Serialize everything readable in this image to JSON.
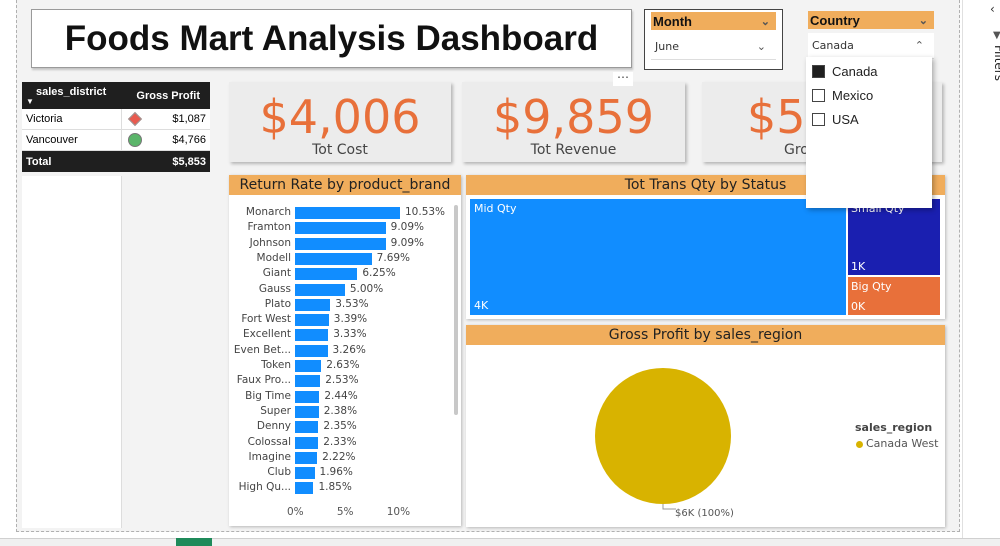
{
  "dashboard": {
    "title": "Foods Mart Analysis Dashboard"
  },
  "month_slicer": {
    "header": "Month",
    "value": "June"
  },
  "country_slicer": {
    "header": "Country",
    "value": "Canada",
    "options": [
      {
        "label": "Canada",
        "checked": true
      },
      {
        "label": "Mexico",
        "checked": false
      },
      {
        "label": "USA",
        "checked": false
      }
    ]
  },
  "more_options": "⋯",
  "table": {
    "col1": "sales_district",
    "col2": "Gross Profit",
    "rows": [
      {
        "district": "Victoria",
        "profit": "$1,087",
        "indicator": "red-diamond",
        "color": "#e85a4f"
      },
      {
        "district": "Vancouver",
        "profit": "$4,766",
        "indicator": "green-circle",
        "color": "#5bb56a"
      }
    ],
    "total_label": "Total",
    "total_value": "$5,853"
  },
  "cards": [
    {
      "value": "$4,006",
      "label": "Tot Cost"
    },
    {
      "value": "$9,859",
      "label": "Tot Revenue"
    },
    {
      "value": "$5",
      "label": "Gro"
    }
  ],
  "colors": {
    "accent": "#f0ad5c",
    "kpi": "#e8703a",
    "bar": "#118dff",
    "treemap_blue": "#118dff",
    "treemap_navy": "#1a1fb0",
    "treemap_orange": "#e8703a",
    "pie": "#d8b300"
  },
  "chart_data": [
    {
      "type": "bar",
      "title": "Return Rate by product_brand",
      "categories": [
        "Monarch",
        "Framton",
        "Johnson",
        "Modell",
        "Giant",
        "Gauss",
        "Plato",
        "Fort West",
        "Excellent",
        "Even Bet...",
        "Token",
        "Faux Pro...",
        "Big Time",
        "Super",
        "Denny",
        "Colossal",
        "Imagine",
        "Club",
        "High Qu..."
      ],
      "values": [
        10.53,
        9.09,
        9.09,
        7.69,
        6.25,
        5.0,
        3.53,
        3.39,
        3.33,
        3.26,
        2.63,
        2.53,
        2.44,
        2.38,
        2.35,
        2.33,
        2.22,
        1.96,
        1.85
      ],
      "value_labels": [
        "10.53%",
        "9.09%",
        "9.09%",
        "7.69%",
        "6.25%",
        "5.00%",
        "3.53%",
        "3.39%",
        "3.33%",
        "3.26%",
        "2.63%",
        "2.53%",
        "2.44%",
        "2.38%",
        "2.35%",
        "2.33%",
        "2.22%",
        "1.96%",
        "1.85%"
      ],
      "x_ticks": [
        "0%",
        "5%",
        "10%"
      ],
      "xlim": [
        0,
        10.53
      ]
    },
    {
      "type": "treemap",
      "title": "Tot Trans Qty by Status",
      "items": [
        {
          "name": "Mid Qty",
          "value_label": "4K"
        },
        {
          "name": "Small Qty",
          "value_label": "1K"
        },
        {
          "name": "Big Qty",
          "value_label": "0K"
        }
      ]
    },
    {
      "type": "pie",
      "title": "Gross Profit by sales_region",
      "slices": [
        {
          "name": "Canada West",
          "value": 5853,
          "label": "$6K (100%)"
        }
      ],
      "legend_title": "sales_region",
      "legend_position": "right"
    }
  ],
  "filters_pane": {
    "label": "Filters"
  }
}
